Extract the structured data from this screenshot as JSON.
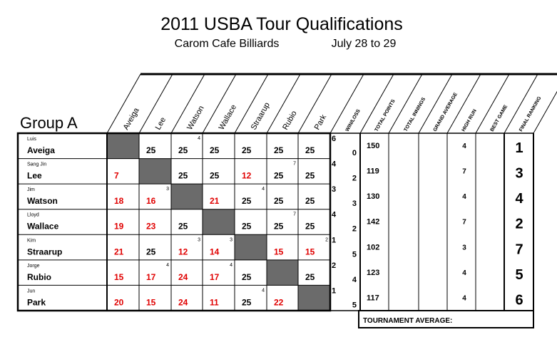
{
  "header": {
    "title": "2011 USBA Tour Qualifications",
    "venue": "Carom Cafe Billiards",
    "dates": "July 28 to 29"
  },
  "group": "Group A",
  "columns": [
    "Aveiga",
    "Lee",
    "Watson",
    "Wallace",
    "Straarup",
    "Rubio",
    "Park"
  ],
  "stat_headers": [
    "WIN/LOSS",
    "TOTAL POINTS",
    "TOTAL INNINGS",
    "GRAND AVERAGE",
    "HIGH RUN",
    "BEST GAME",
    "FINAL RANKING"
  ],
  "table": {
    "rows": [
      {
        "first": "Luis",
        "last": "Aveiga",
        "cells": [
          null,
          {
            "score": 25,
            "color": "#000000"
          },
          {
            "score": 25,
            "color": "#000000",
            "note": 4
          },
          {
            "score": 25,
            "color": "#000000"
          },
          {
            "score": 25,
            "color": "#000000"
          },
          {
            "score": 25,
            "color": "#000000"
          },
          {
            "score": 25,
            "color": "#000000"
          }
        ],
        "win": 6,
        "loss": 0,
        "total_points": 150,
        "high_run": 4,
        "rank": 1
      },
      {
        "first": "Sang Jin",
        "last": "Lee",
        "cells": [
          {
            "score": 7,
            "color": "#e00000"
          },
          null,
          {
            "score": 25,
            "color": "#000000"
          },
          {
            "score": 25,
            "color": "#000000"
          },
          {
            "score": 12,
            "color": "#e00000"
          },
          {
            "score": 25,
            "color": "#000000",
            "note": 7
          },
          {
            "score": 25,
            "color": "#000000"
          }
        ],
        "win": 4,
        "loss": 2,
        "total_points": 119,
        "high_run": 7,
        "rank": 3
      },
      {
        "first": "Jim",
        "last": "Watson",
        "cells": [
          {
            "score": 18,
            "color": "#e00000"
          },
          {
            "score": 16,
            "color": "#e00000",
            "note": 3
          },
          null,
          {
            "score": 21,
            "color": "#e00000"
          },
          {
            "score": 25,
            "color": "#000000",
            "note": 4
          },
          {
            "score": 25,
            "color": "#000000"
          },
          {
            "score": 25,
            "color": "#000000"
          }
        ],
        "win": 3,
        "loss": 3,
        "total_points": 130,
        "high_run": 4,
        "rank": 4
      },
      {
        "first": "Lloyd",
        "last": "Wallace",
        "cells": [
          {
            "score": 19,
            "color": "#e00000"
          },
          {
            "score": 23,
            "color": "#e00000"
          },
          {
            "score": 25,
            "color": "#000000"
          },
          null,
          {
            "score": 25,
            "color": "#000000"
          },
          {
            "score": 25,
            "color": "#000000",
            "note": 7
          },
          {
            "score": 25,
            "color": "#000000"
          }
        ],
        "win": 4,
        "loss": 2,
        "total_points": 142,
        "high_run": 7,
        "rank": 2
      },
      {
        "first": "Kim",
        "last": "Straarup",
        "cells": [
          {
            "score": 21,
            "color": "#e00000"
          },
          {
            "score": 25,
            "color": "#000000"
          },
          {
            "score": 12,
            "color": "#e00000",
            "note": 3
          },
          {
            "score": 14,
            "color": "#e00000",
            "note": 3
          },
          null,
          {
            "score": 15,
            "color": "#e00000"
          },
          {
            "score": 15,
            "color": "#e00000",
            "note": 2
          }
        ],
        "win": 1,
        "loss": 5,
        "total_points": 102,
        "high_run": 3,
        "rank": 7
      },
      {
        "first": "Jorge",
        "last": "Rubio",
        "cells": [
          {
            "score": 15,
            "color": "#e00000"
          },
          {
            "score": 17,
            "color": "#e00000",
            "note": 4
          },
          {
            "score": 24,
            "color": "#e00000"
          },
          {
            "score": 17,
            "color": "#e00000",
            "note": 4
          },
          {
            "score": 25,
            "color": "#000000"
          },
          null,
          {
            "score": 25,
            "color": "#000000"
          }
        ],
        "win": 2,
        "loss": 4,
        "total_points": 123,
        "high_run": 4,
        "rank": 5
      },
      {
        "first": "Jun",
        "last": "Park",
        "cells": [
          {
            "score": 20,
            "color": "#e00000"
          },
          {
            "score": 15,
            "color": "#e00000"
          },
          {
            "score": 24,
            "color": "#e00000"
          },
          {
            "score": 11,
            "color": "#e00000"
          },
          {
            "score": 25,
            "color": "#000000",
            "note": 4
          },
          {
            "score": 22,
            "color": "#e00000"
          },
          null
        ],
        "win": 1,
        "loss": 5,
        "total_points": 117,
        "high_run": 4,
        "rank": 6
      }
    ]
  },
  "footer": "TOURNAMENT AVERAGE:"
}
